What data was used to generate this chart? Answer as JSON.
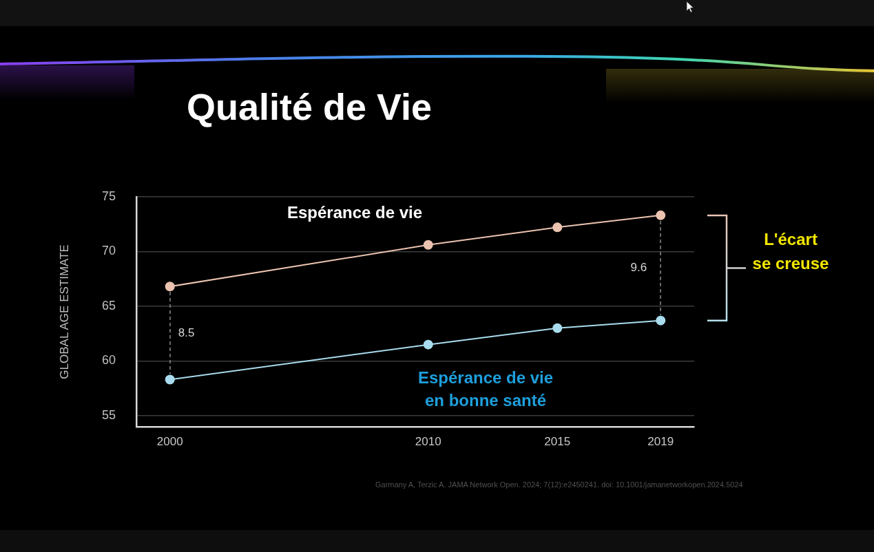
{
  "chart_data": {
    "type": "line",
    "title": "Qualité de Vie",
    "ylabel": "GLOBAL AGE ESTIMATE",
    "x": [
      2000,
      2010,
      2015,
      2019
    ],
    "xlim": [
      1998.7,
      2020.3
    ],
    "xticks": [
      2000,
      2010,
      2015,
      2019
    ],
    "ylim": [
      54,
      75
    ],
    "yticks": [
      55,
      60,
      65,
      70,
      75
    ],
    "series": [
      {
        "name": "Espérance de vie",
        "color": "#ebc3b0",
        "values": [
          66.8,
          70.6,
          72.2,
          73.3
        ]
      },
      {
        "name": "Espérance de vie en bonne santé",
        "color": "#a9dcee",
        "values": [
          58.3,
          61.5,
          63.0,
          63.7
        ]
      }
    ],
    "annotations": [
      "8.5",
      "9.6",
      "L'écart se creuse",
      "Garmany A, Terzic A. JAMA Network Open. 2024; 7(12):e2450241. doi: 10.1001/jamanetworkopen.2024.5024"
    ],
    "grid": "y",
    "legend": false,
    "marker": "circle",
    "line_style": "solid"
  }
}
